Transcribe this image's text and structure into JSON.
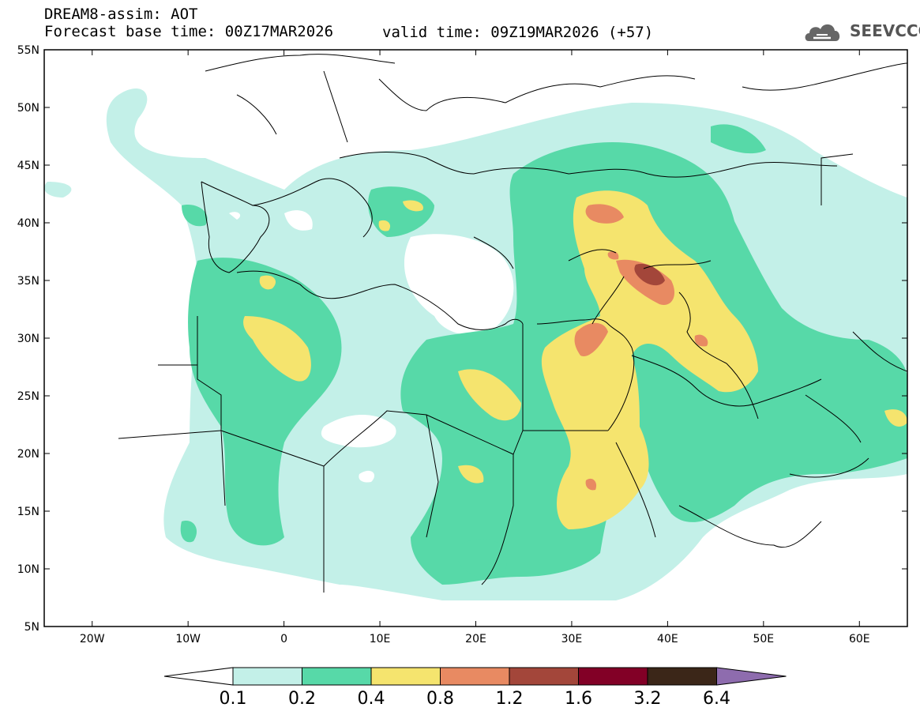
{
  "header": {
    "title": "DREAM8-assim: AOT",
    "base_time": "Forecast base time: 00Z17MAR2026",
    "valid_time": "valid time: 09Z19MAR2026 (+57)"
  },
  "logo": {
    "text": "SEEVCCC",
    "icon": "cloud-icon"
  },
  "map": {
    "lon_range": [
      -25,
      65
    ],
    "lat_range": [
      5,
      55
    ],
    "x_ticks": [
      {
        "lon": -20,
        "label": "20W"
      },
      {
        "lon": -10,
        "label": "10W"
      },
      {
        "lon": 0,
        "label": "0"
      },
      {
        "lon": 10,
        "label": "10E"
      },
      {
        "lon": 20,
        "label": "20E"
      },
      {
        "lon": 30,
        "label": "30E"
      },
      {
        "lon": 40,
        "label": "40E"
      },
      {
        "lon": 50,
        "label": "50E"
      },
      {
        "lon": 60,
        "label": "60E"
      }
    ],
    "y_ticks": [
      {
        "lat": 55,
        "label": "55N"
      },
      {
        "lat": 50,
        "label": "50N"
      },
      {
        "lat": 45,
        "label": "45N"
      },
      {
        "lat": 40,
        "label": "40N"
      },
      {
        "lat": 35,
        "label": "35N"
      },
      {
        "lat": 30,
        "label": "30N"
      },
      {
        "lat": 25,
        "label": "25N"
      },
      {
        "lat": 20,
        "label": "20N"
      },
      {
        "lat": 15,
        "label": "15N"
      },
      {
        "lat": 10,
        "label": "10N"
      },
      {
        "lat": 5,
        "label": "5N"
      }
    ]
  },
  "colorbar": {
    "levels": [
      "0.1",
      "0.2",
      "0.4",
      "0.8",
      "1.2",
      "1.6",
      "3.2",
      "6.4"
    ],
    "colors": [
      "#ffffff",
      "#c3f0e8",
      "#57d9a8",
      "#f5e46e",
      "#e88a62",
      "#a3463a",
      "#820026",
      "#3b2618",
      "#8e6cae"
    ]
  }
}
